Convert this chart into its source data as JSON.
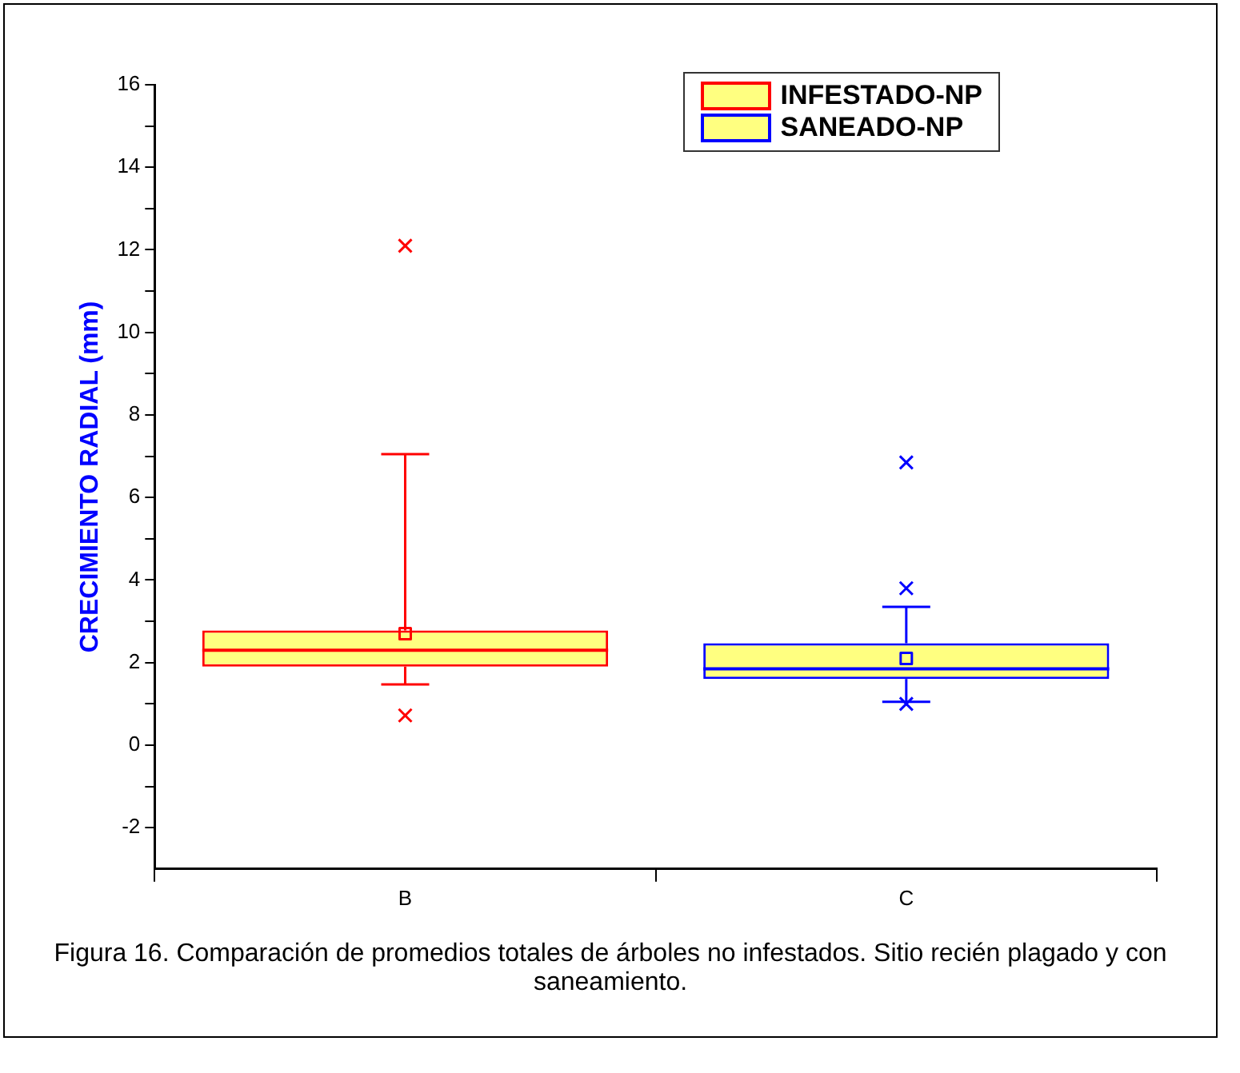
{
  "chart_data": {
    "type": "box",
    "categories": [
      "B",
      "C"
    ],
    "ylabel": "CRECIMIENTO RADIAL (mm)",
    "ylim": [
      -3,
      16
    ],
    "yticks": [
      -2,
      {
        "value": -1,
        "label": null
      },
      0,
      {
        "value": 1,
        "label": null
      },
      2,
      {
        "value": 3,
        "label": null
      },
      4,
      {
        "value": 5,
        "label": null
      },
      6,
      {
        "value": 7,
        "label": null
      },
      8,
      {
        "value": 9,
        "label": null
      },
      10,
      {
        "value": 11,
        "label": null
      },
      12,
      {
        "value": 13,
        "label": null
      },
      14,
      {
        "value": 15,
        "label": null
      },
      16
    ],
    "colors": [
      "#ffff80",
      "#ffff80"
    ],
    "legend": "top right",
    "series": [
      {
        "name": "INFESTADO-NP",
        "color": "#ff0000",
        "boxes": [
          {
            "low": 1.47,
            "q1": 1.9,
            "median": 2.3,
            "q3": 2.78,
            "high": 7.05,
            "mean": 2.7,
            "outliers": [
              12.1,
              0.72
            ]
          },
          null
        ]
      },
      {
        "name": "SANEADO-NP",
        "color": "#0000ff",
        "boxes": [
          null,
          {
            "low": 1.05,
            "q1": 1.6,
            "median": 1.85,
            "q3": 2.47,
            "high": 3.35,
            "mean": 2.1,
            "outliers": [
              6.85,
              3.8,
              1.0
            ]
          }
        ]
      }
    ],
    "annotations": [
      "Figura 16. Comparación de promedios totales de árboles no infestados. Sitio recién plagado y con saneamiento."
    ]
  }
}
